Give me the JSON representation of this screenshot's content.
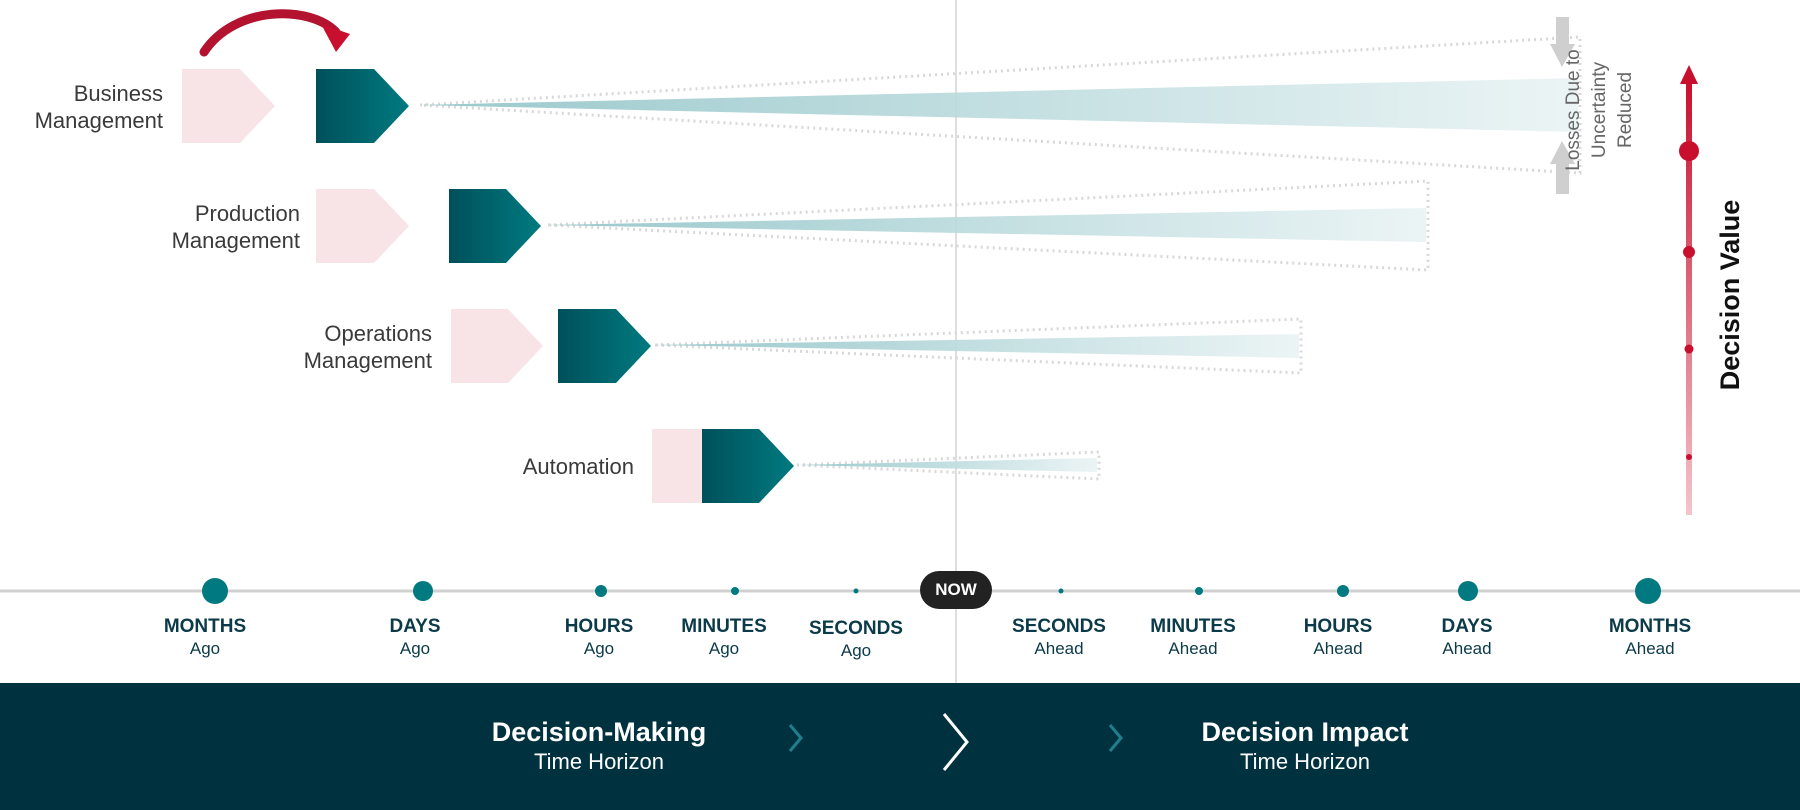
{
  "layers": [
    {
      "label_line1": "Business",
      "label_line2": "Management"
    },
    {
      "label_line1": "Production",
      "label_line2": "Management"
    },
    {
      "label_line1": "Operations",
      "label_line2": "Management"
    },
    {
      "label_line1": "Automation",
      "label_line2": ""
    }
  ],
  "losses_note": {
    "line1": "Losses Due to",
    "line2": "Uncertainty",
    "line3": "Reduced"
  },
  "decision_value": "Decision Value",
  "now_label": "NOW",
  "past_ticks": [
    {
      "unit": "MONTHS",
      "dir": "Ago"
    },
    {
      "unit": "DAYS",
      "dir": "Ago"
    },
    {
      "unit": "HOURS",
      "dir": "Ago"
    },
    {
      "unit": "MINUTES",
      "dir": "Ago"
    },
    {
      "unit": "SECONDS",
      "dir": "Ago"
    }
  ],
  "future_ticks": [
    {
      "unit": "SECONDS",
      "dir": "Ahead"
    },
    {
      "unit": "MINUTES",
      "dir": "Ahead"
    },
    {
      "unit": "HOURS",
      "dir": "Ahead"
    },
    {
      "unit": "DAYS",
      "dir": "Ahead"
    },
    {
      "unit": "MONTHS",
      "dir": "Ahead"
    }
  ],
  "banner": {
    "left_title": "Decision-Making",
    "left_sub": "Time Horizon",
    "right_title": "Decision Impact",
    "right_sub": "Time Horizon"
  },
  "colors": {
    "teal": "#007a80",
    "teal_dark": "#00505a",
    "banner": "#00313f",
    "pink": "#f8e4e6",
    "red": "#c8102e",
    "cone": "#cfe6e8"
  },
  "icons": [
    "curved-arrow-icon",
    "down-arrow-icon",
    "up-arrow-icon",
    "chevron-right-icon"
  ]
}
